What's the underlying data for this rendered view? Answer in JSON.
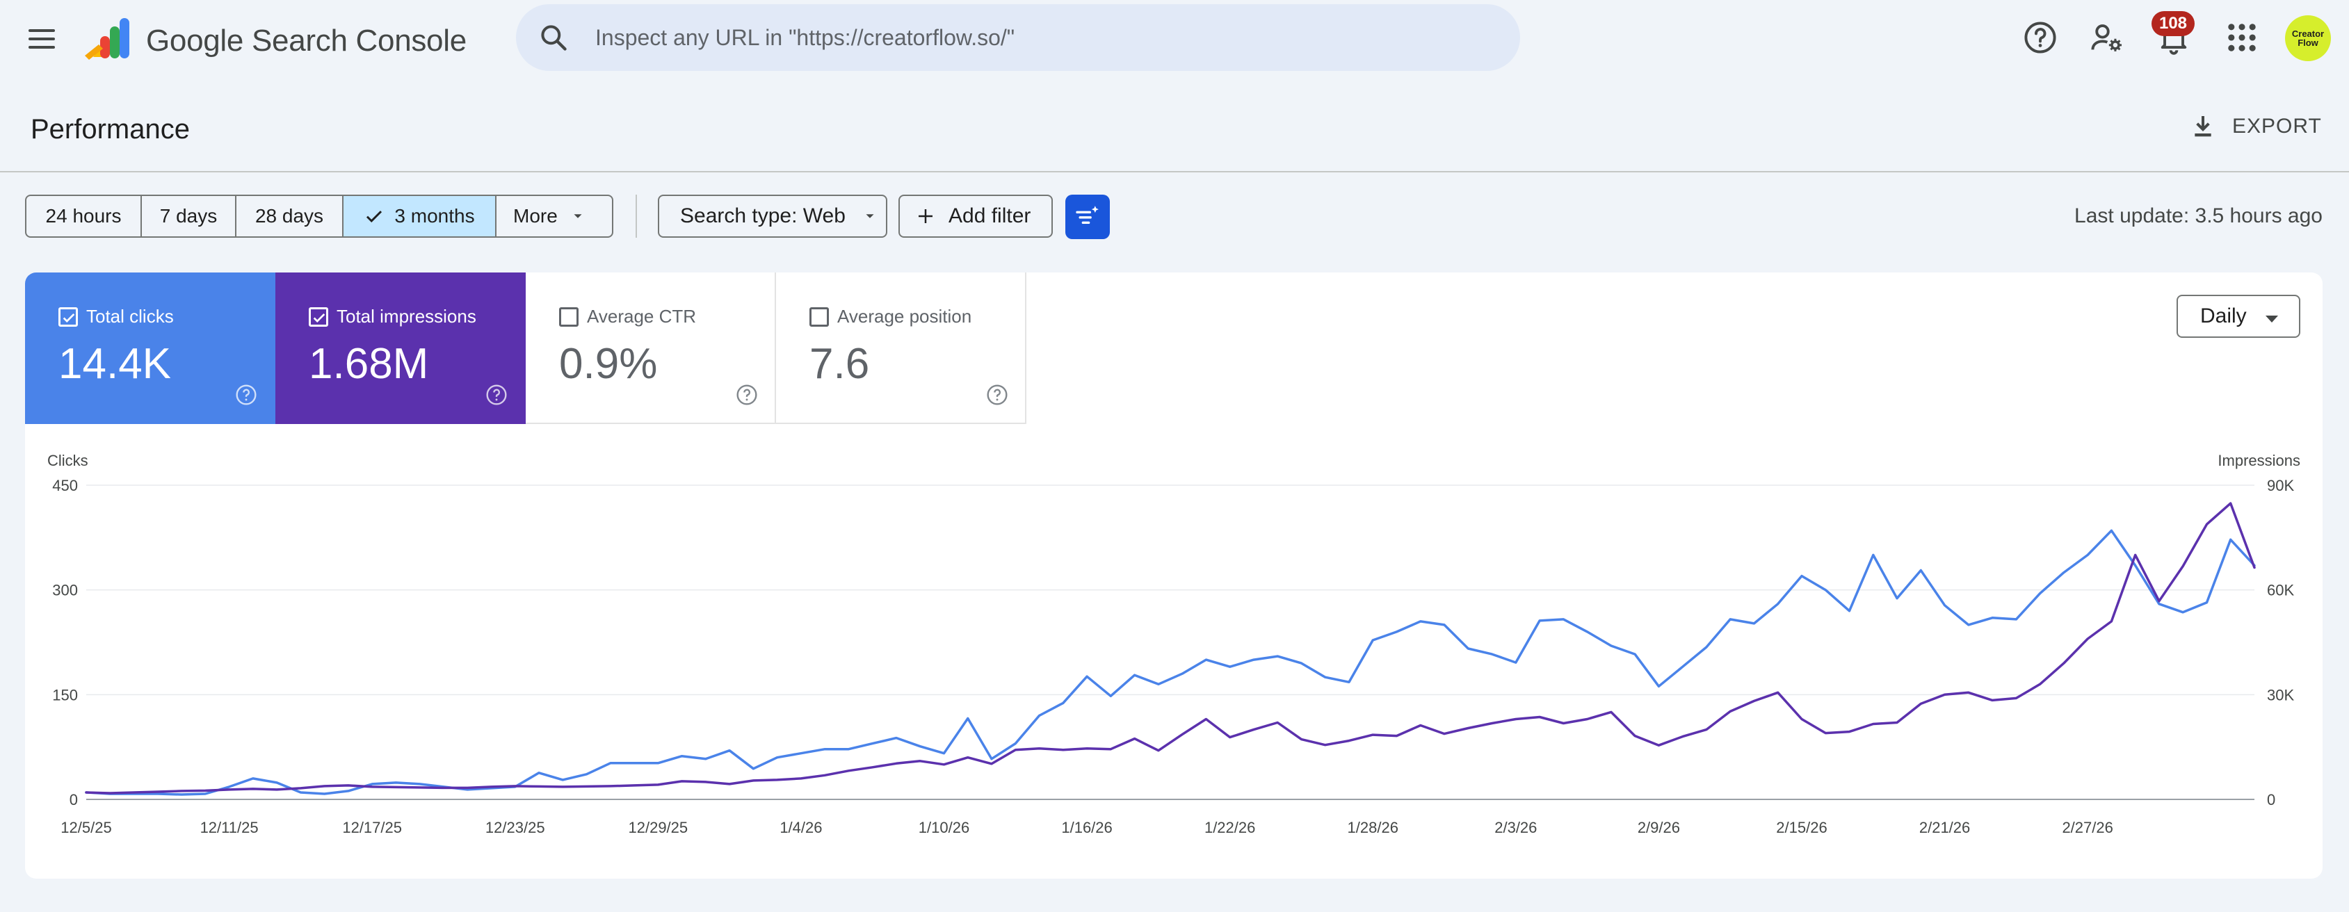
{
  "header": {
    "product": "Google Search Console",
    "search_placeholder": "Inspect any URL in \"https://creatorflow.so/\"",
    "notifications_count": "108",
    "avatar_text_line1": "Creator",
    "avatar_text_line2": "Flow",
    "icons": [
      "menu-icon",
      "help-icon",
      "manage-users-icon",
      "notifications-icon",
      "apps-icon"
    ]
  },
  "page": {
    "title": "Performance",
    "export_label": "EXPORT"
  },
  "filters": {
    "date_ranges": [
      {
        "label": "24 hours",
        "selected": false
      },
      {
        "label": "7 days",
        "selected": false
      },
      {
        "label": "28 days",
        "selected": false
      },
      {
        "label": "3 months",
        "selected": true
      },
      {
        "label": "More",
        "selected": false
      }
    ],
    "search_type": "Search type: Web",
    "add_filter": "Add filter",
    "last_update": "Last update: 3.5 hours ago"
  },
  "metrics": [
    {
      "label": "Total clicks",
      "value": "14.4K",
      "checked": true,
      "color": "#4a83e9"
    },
    {
      "label": "Total impressions",
      "value": "1.68M",
      "checked": true,
      "color": "#5b31ad"
    },
    {
      "label": "Average CTR",
      "value": "0.9%",
      "checked": false
    },
    {
      "label": "Average position",
      "value": "7.6",
      "checked": false
    }
  ],
  "granularity": "Daily",
  "chart_data": {
    "type": "line",
    "left_axis_label": "Clicks",
    "right_axis_label": "Impressions",
    "left_ylim": [
      0,
      450
    ],
    "right_ylim": [
      0,
      90000
    ],
    "left_ticks": [
      "0",
      "150",
      "300",
      "450"
    ],
    "right_ticks": [
      "0",
      "30K",
      "60K",
      "90K"
    ],
    "x_tick_labels": [
      "12/5/25",
      "12/11/25",
      "12/17/25",
      "12/23/25",
      "12/29/25",
      "1/4/26",
      "1/10/26",
      "1/16/26",
      "1/22/26",
      "1/28/26",
      "2/3/26",
      "2/9/26",
      "2/15/26",
      "2/21/26",
      "2/27/26"
    ],
    "grid": true,
    "series": [
      {
        "name": "Total clicks",
        "color": "#4a83e9",
        "axis": "left",
        "values": [
          10,
          8,
          8,
          8,
          7,
          8,
          18,
          30,
          24,
          10,
          8,
          12,
          22,
          24,
          22,
          18,
          14,
          16,
          18,
          38,
          28,
          36,
          52,
          52,
          52,
          62,
          58,
          70,
          44,
          60,
          66,
          72,
          72,
          80,
          88,
          76,
          66,
          116,
          58,
          80,
          120,
          138,
          176,
          148,
          178,
          165,
          180,
          200,
          190,
          200,
          205,
          195,
          175,
          168,
          228,
          240,
          255,
          250,
          216,
          208,
          196,
          256,
          258,
          240,
          220,
          208,
          162,
          190,
          218,
          258,
          252,
          280,
          320,
          300,
          270,
          350,
          288,
          328,
          278,
          250,
          260,
          258,
          295,
          325,
          350,
          385,
          335,
          280,
          268,
          282,
          372,
          335
        ]
      },
      {
        "name": "Total impressions",
        "color": "#5b31ad",
        "axis": "right",
        "values": [
          2000,
          1800,
          2000,
          2200,
          2400,
          2500,
          2800,
          3000,
          2800,
          3200,
          3800,
          4000,
          3600,
          3500,
          3400,
          3300,
          3300,
          3600,
          3800,
          3700,
          3600,
          3700,
          3800,
          4000,
          4200,
          5200,
          5000,
          4400,
          5400,
          5600,
          6000,
          6900,
          8200,
          9200,
          10300,
          11000,
          10000,
          12000,
          10200,
          14200,
          14600,
          14200,
          14600,
          14400,
          17400,
          14000,
          18600,
          23000,
          17800,
          20000,
          22000,
          17200,
          15600,
          16800,
          18500,
          18200,
          21200,
          18800,
          20400,
          21800,
          23000,
          23600,
          21800,
          23000,
          25000,
          18200,
          15500,
          18000,
          20000,
          25200,
          28200,
          30600,
          23000,
          19000,
          19400,
          21600,
          22000,
          27400,
          30000,
          30600,
          28400,
          29000,
          33000,
          39000,
          46000,
          51000,
          70000,
          56800,
          66800,
          78800,
          84800,
          66400
        ]
      }
    ]
  }
}
